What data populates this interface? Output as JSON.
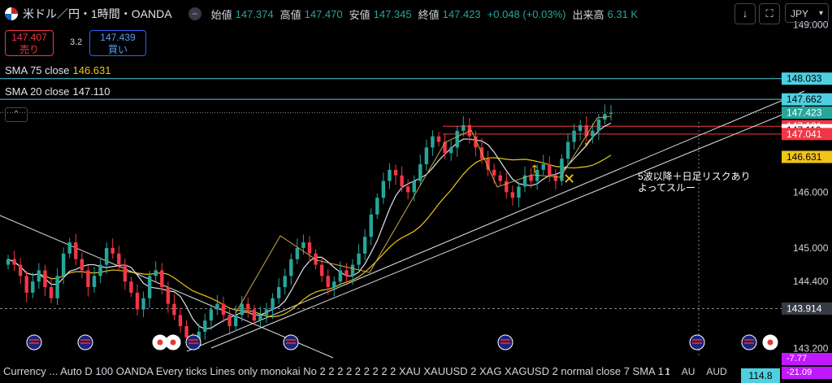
{
  "header": {
    "title": "米ドル／円・1時間・OANDA",
    "collapse_icon": "minus",
    "ohlc": [
      {
        "label": "始値",
        "value": "147.374"
      },
      {
        "label": "高値",
        "value": "147.470"
      },
      {
        "label": "安値",
        "value": "147.345"
      },
      {
        "label": "終値",
        "value": "147.423"
      },
      {
        "label": "",
        "value": "+0.048 (+0.03%)"
      },
      {
        "label": "出来高",
        "value": "6.31 K"
      }
    ],
    "download_icon": "↓",
    "fullscreen_icon": "⛶",
    "currency": "JPY"
  },
  "trade": {
    "sell_price": "147.407",
    "sell_label": "売り",
    "spread": "3.2",
    "buy_price": "147.439",
    "buy_label": "買い"
  },
  "indicators": {
    "sma75_label": "SMA 75 close",
    "sma75_value": "146.631",
    "sma20_label": "SMA 20 close",
    "sma20_value": "147.110"
  },
  "annotation": {
    "line1": "5波以降＋日足リスクあり",
    "line2": "よってスルー"
  },
  "bottom": {
    "text": "Currency ...  Auto D 100 OANDA Every ticks Lines only monokai No 2 2 2 2 2 2 2 2 2 XAU XAUUSD 2 XAG XAGUSD 2 normal close 7 SMA 1 t",
    "extra1": "1",
    "extra2": "AU",
    "extra3": "AUD",
    "extra_value": "114.8",
    "p_low1": "-7.77",
    "p_low2": "-21.09"
  },
  "colors": {
    "up": "#26a69a",
    "down": "#f23645",
    "sma20": "#e0e3eb",
    "sma75": "#f0c419",
    "cyan_line": "#4dd0e1",
    "red_line": "#f23645"
  },
  "chart_data": {
    "type": "candlestick",
    "title": "米ドル／円・1時間・OANDA",
    "ylim": [
      143.15,
      149.15
    ],
    "y_ticks": [
      "149.000",
      "146.000",
      "145.000",
      "144.400",
      "143.200"
    ],
    "price_labels": [
      {
        "value": 148.033,
        "text": "148.033",
        "bg": "#4dd0e1",
        "fg": "#000000"
      },
      {
        "value": 147.662,
        "text": "147.662",
        "bg": "#4dd0e1",
        "fg": "#000000"
      },
      {
        "value": 147.423,
        "text": "147.423",
        "bg": "#26a69a",
        "fg": "#ffffff"
      },
      {
        "value": 147.181,
        "text": "147.181",
        "bg": "#f23645",
        "fg": "#ffffff"
      },
      {
        "value": 147.11,
        "text": "147.110",
        "bg": "#ffffff",
        "fg": "#000000"
      },
      {
        "value": 147.041,
        "text": "147.041",
        "bg": "#f23645",
        "fg": "#ffffff"
      },
      {
        "value": 146.631,
        "text": "146.631",
        "bg": "#f0c419",
        "fg": "#000000"
      },
      {
        "value": 143.914,
        "text": "143.914",
        "bg": "#363a45",
        "fg": "#ffffff"
      }
    ],
    "horizontal_lines": [
      {
        "value": 148.033,
        "color": "#4dd0e1",
        "style": "solid"
      },
      {
        "value": 147.662,
        "color": "#4dd0e1",
        "style": "solid"
      },
      {
        "value": 147.423,
        "color": "#888888",
        "style": "dotted"
      },
      {
        "value": 147.181,
        "color": "#f23645",
        "style": "solid"
      },
      {
        "value": 147.041,
        "color": "#f23645",
        "style": "solid"
      },
      {
        "value": 143.914,
        "color": "#888888",
        "style": "dashed"
      }
    ],
    "close_series": [
      144.8,
      144.7,
      144.5,
      144.2,
      144.4,
      144.6,
      144.3,
      144.1,
      144.5,
      144.9,
      145.1,
      144.8,
      144.6,
      144.3,
      144.5,
      144.7,
      145.0,
      144.9,
      144.7,
      144.4,
      144.2,
      143.9,
      144.1,
      144.5,
      144.6,
      144.3,
      144.0,
      143.8,
      143.6,
      143.4,
      143.3,
      143.5,
      143.7,
      143.9,
      144.0,
      143.8,
      143.6,
      143.8,
      144.0,
      143.9,
      143.7,
      143.8,
      143.9,
      144.1,
      144.3,
      144.5,
      144.8,
      145.0,
      145.1,
      144.9,
      144.7,
      144.5,
      144.3,
      144.4,
      144.6,
      144.5,
      144.7,
      144.9,
      145.2,
      145.6,
      145.9,
      146.2,
      146.4,
      146.3,
      146.1,
      146.0,
      146.2,
      146.5,
      146.8,
      147.0,
      146.9,
      146.7,
      146.8,
      147.1,
      147.2,
      147.0,
      146.8,
      146.6,
      146.4,
      146.3,
      146.2,
      146.0,
      145.9,
      146.1,
      146.3,
      146.2,
      146.4,
      146.5,
      146.3,
      146.2,
      146.6,
      146.9,
      147.1,
      147.2,
      147.0,
      147.1,
      147.3,
      147.4,
      147.42
    ]
  }
}
